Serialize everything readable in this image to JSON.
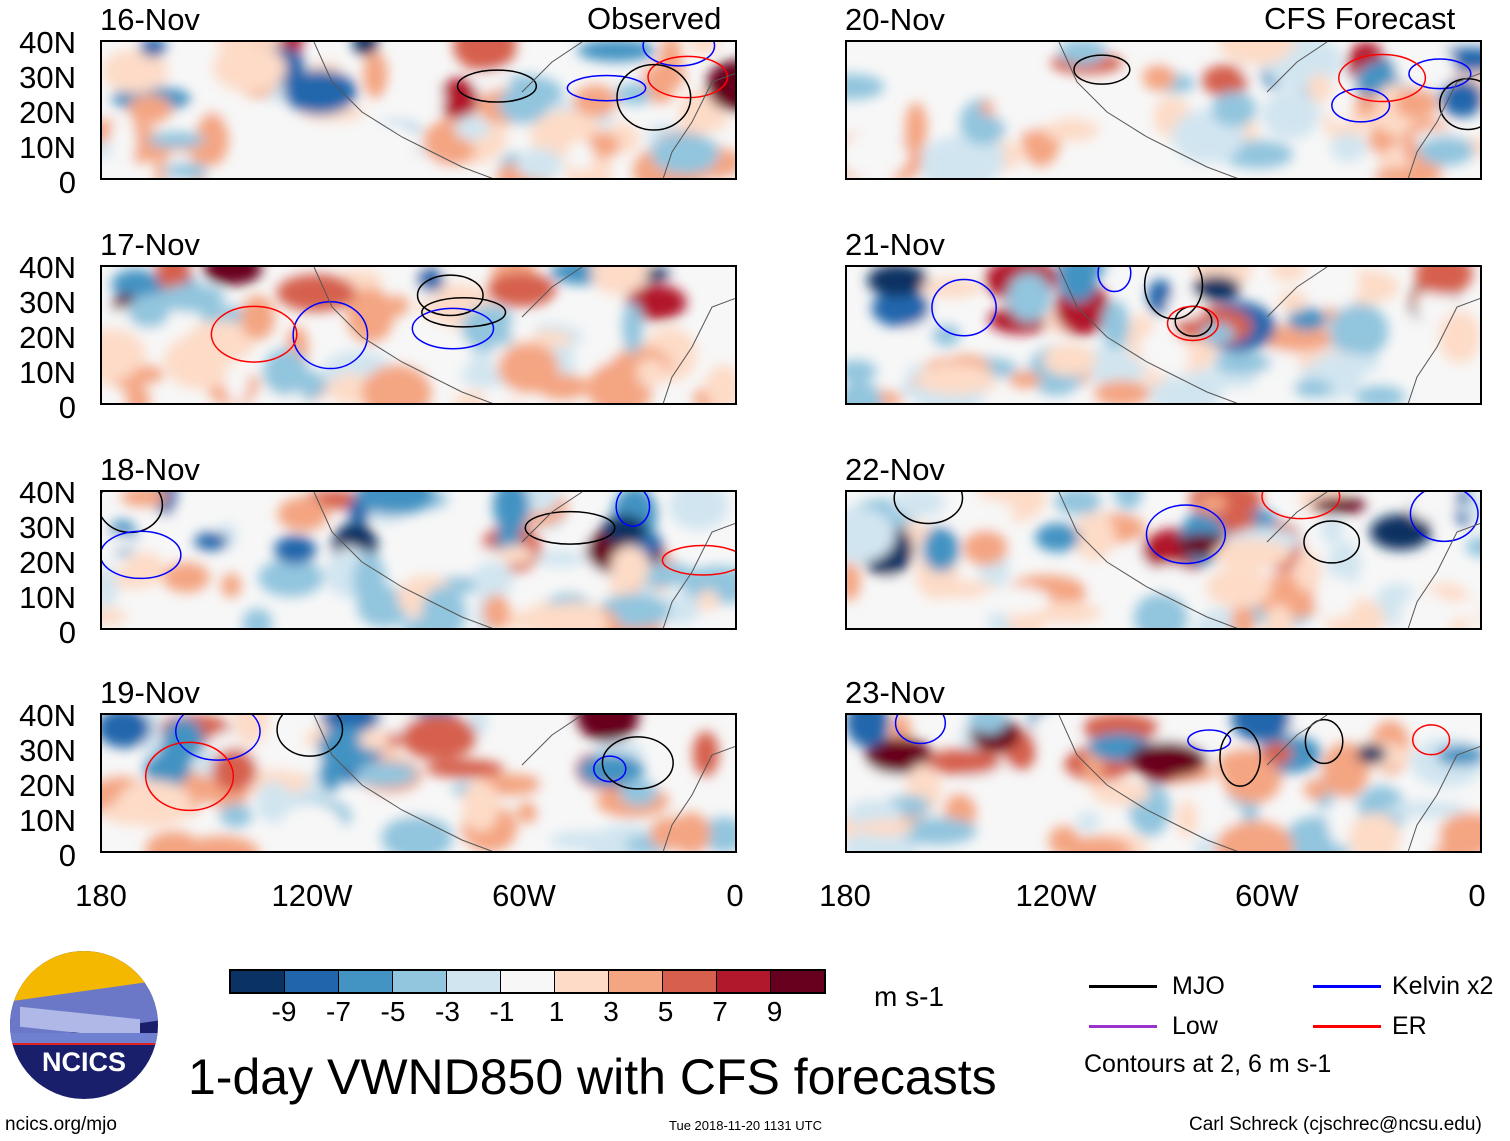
{
  "headers": {
    "left": "Observed",
    "right": "CFS Forecast"
  },
  "panels": {
    "left": [
      "16-Nov",
      "17-Nov",
      "18-Nov",
      "19-Nov"
    ],
    "right": [
      "20-Nov",
      "21-Nov",
      "22-Nov",
      "23-Nov"
    ]
  },
  "lat_ticks": [
    "40N",
    "30N",
    "20N",
    "10N",
    "0"
  ],
  "lon_ticks": [
    "180",
    "120W",
    "60W",
    "0"
  ],
  "colorbar": {
    "colors": [
      "#0a3262",
      "#2166ac",
      "#4393c3",
      "#92c5de",
      "#d1e5f0",
      "#f7f7f7",
      "#fddbc7",
      "#f4a582",
      "#d6604d",
      "#b2182b",
      "#67001f"
    ],
    "labels": [
      "-9",
      "-7",
      "-5",
      "-3",
      "-1",
      "1",
      "3",
      "5",
      "7",
      "9"
    ],
    "units": "m s-1"
  },
  "legend": {
    "items": [
      {
        "label": "MJO",
        "color": "#000000"
      },
      {
        "label": "Kelvin x2",
        "color": "#0000ff"
      },
      {
        "label": "Low",
        "color": "#9933cc"
      },
      {
        "label": "ER",
        "color": "#ff0000"
      }
    ],
    "note": "Contours at 2, 6 m s-1"
  },
  "title": "1-day VWND850 with CFS forecasts",
  "logo_text": "NCICS",
  "footer": {
    "left": "ncics.org/mjo",
    "center": "Tue 2018-11-20 1131 UTC",
    "right": "Carl Schreck (cjschrec@ncsu.edu)"
  }
}
